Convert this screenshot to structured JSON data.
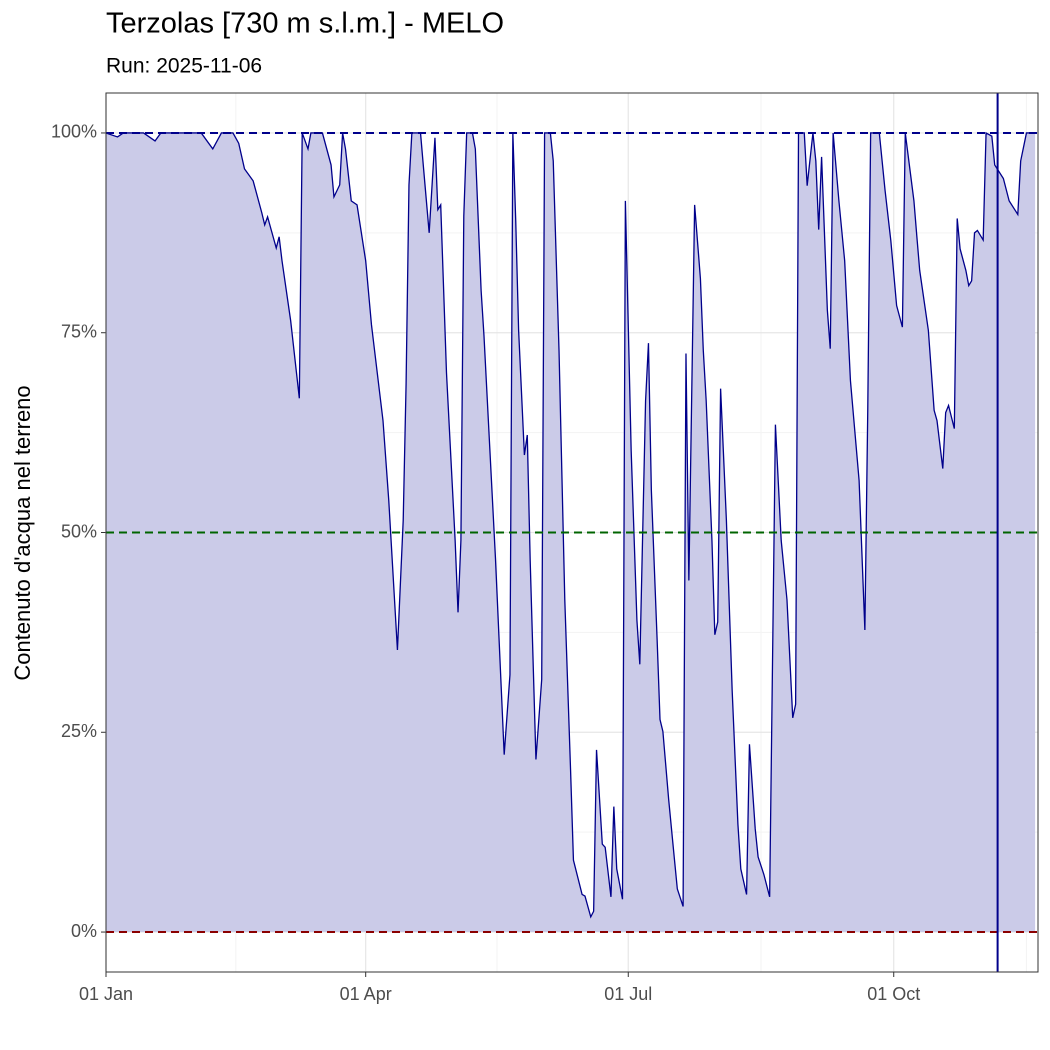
{
  "chart_data": {
    "type": "area",
    "title": "Terzolas [730 m s.l.m.] - MELO",
    "subtitle": "Run: 2025-11-06",
    "y_label": "Contenuto d'acqua nel terreno",
    "line_color": "#00008b",
    "fill_color": "#cbcbe8",
    "x": [
      0,
      4,
      6,
      13,
      17,
      19,
      21,
      24,
      33,
      37,
      40,
      44,
      46,
      48,
      51,
      54,
      55,
      56,
      59,
      60,
      61,
      64,
      67,
      68,
      70,
      71,
      75,
      78,
      79,
      81,
      82,
      83,
      85,
      87,
      90,
      92,
      96,
      98,
      101,
      103,
      104,
      105,
      106,
      109,
      110,
      112,
      114,
      115,
      116,
      118,
      121,
      122,
      123,
      124,
      125,
      127,
      128,
      130,
      131,
      135,
      138,
      140,
      141,
      142,
      143,
      145,
      146,
      147,
      149,
      151,
      152,
      154,
      155,
      157,
      159,
      161,
      162,
      165,
      166,
      168,
      169,
      170,
      172,
      173,
      175,
      176,
      177,
      179,
      180,
      182,
      184,
      185,
      187,
      188,
      189,
      191,
      192,
      193,
      195,
      197,
      198,
      200,
      201,
      202,
      204,
      206,
      207,
      208,
      210,
      211,
      212,
      213,
      215,
      217,
      219,
      220,
      222,
      223,
      225,
      226,
      228,
      230,
      232,
      234,
      236,
      238,
      239,
      240,
      242,
      243,
      245,
      246,
      247,
      248,
      250,
      251,
      252,
      254,
      256,
      258,
      261,
      263,
      264,
      265,
      268,
      270,
      272,
      274,
      276,
      277,
      280,
      281,
      282,
      285,
      287,
      288,
      290,
      291,
      292,
      294,
      295,
      296,
      298,
      299,
      300,
      301,
      302,
      304,
      305,
      307,
      308,
      311,
      313,
      316,
      317,
      319,
      322
    ],
    "values": [
      100,
      99.5,
      100,
      100,
      99,
      100,
      100,
      100,
      100,
      98,
      100,
      100,
      98.7,
      95.5,
      94,
      90,
      88.5,
      89.5,
      85.6,
      87,
      84,
      76.5,
      66.8,
      100,
      98,
      100,
      100,
      96,
      92,
      93.5,
      100,
      98,
      91.5,
      91,
      84,
      76,
      64,
      54,
      35.3,
      51.5,
      68.6,
      93.5,
      100,
      100,
      95.8,
      87.5,
      99.4,
      90.4,
      91,
      70,
      49,
      40,
      49,
      89.6,
      100,
      100,
      98,
      80.3,
      74.6,
      46.6,
      22.2,
      32.2,
      100,
      89,
      75.3,
      59.7,
      62.2,
      46.6,
      21.6,
      31.6,
      100,
      100,
      96.5,
      72.8,
      41.6,
      20.3,
      9,
      4.7,
      4.5,
      1.9,
      2.6,
      22.8,
      11,
      10.6,
      4.4,
      15.7,
      7.9,
      4.1,
      91.5,
      60.3,
      39,
      33.5,
      66.5,
      73.7,
      55.3,
      36.6,
      26.6,
      25.1,
      16.6,
      9.1,
      5.4,
      3.2,
      72.4,
      44,
      91,
      81.8,
      72.8,
      66.5,
      49,
      37.2,
      38.8,
      68,
      51.6,
      30.3,
      13.5,
      7.9,
      4.7,
      23.5,
      12.9,
      9.4,
      7.2,
      4.4,
      63.5,
      49,
      41.6,
      26.8,
      28.5,
      100,
      100,
      93.4,
      100,
      96.5,
      87.9,
      97,
      77.8,
      73,
      100,
      91.5,
      84,
      69,
      56.5,
      37.8,
      65.3,
      100,
      100,
      92.8,
      86.5,
      78.4,
      75.7,
      100,
      91.5,
      87.1,
      82.8,
      75.3,
      65.3,
      64,
      58,
      65,
      65.9,
      63,
      89.3,
      85.5,
      82.8,
      80.9,
      81.5,
      87.5,
      87.8,
      86.6,
      100,
      99.6,
      96,
      94.3,
      91.5,
      89.8,
      96.5,
      100,
      100
    ],
    "xlim": [
      0,
      323
    ],
    "xticks": [
      {
        "value": 0,
        "label": "01 Jan"
      },
      {
        "value": 90,
        "label": "01 Apr"
      },
      {
        "value": 181,
        "label": "01 Jul"
      },
      {
        "value": 273,
        "label": "01 Oct"
      }
    ],
    "ylim": [
      -5,
      105
    ],
    "yticks": [
      {
        "value": 0,
        "label": "0%"
      },
      {
        "value": 25,
        "label": "25%"
      },
      {
        "value": 50,
        "label": "50%"
      },
      {
        "value": 75,
        "label": "75%"
      },
      {
        "value": 100,
        "label": "100%"
      }
    ],
    "grid": true,
    "hlines": [
      {
        "value": 100,
        "color": "#00008b"
      },
      {
        "value": 50,
        "color": "#006400"
      },
      {
        "value": 0,
        "color": "#8b0000"
      }
    ],
    "vline": {
      "value": 309,
      "color": "#00008b"
    }
  }
}
